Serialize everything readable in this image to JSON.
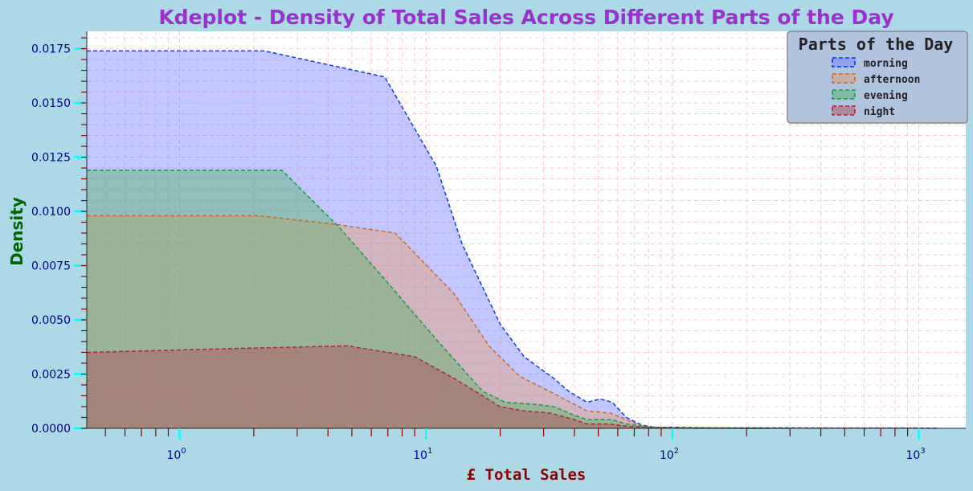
{
  "chart_data": {
    "type": "area",
    "title": "Kdeplot - Density of Total Sales Across Different Parts of the Day",
    "xlabel": "£ Total Sales",
    "ylabel": "Density",
    "x_scale": "log",
    "xlim": [
      0.42,
      1550
    ],
    "ylim": [
      0,
      0.0183
    ],
    "x_ticks": [
      {
        "value": 1,
        "base": "10",
        "exp": "0"
      },
      {
        "value": 10,
        "base": "10",
        "exp": "1"
      },
      {
        "value": 100,
        "base": "10",
        "exp": "2"
      },
      {
        "value": 1000,
        "base": "10",
        "exp": "3"
      }
    ],
    "y_ticks": [
      "0.0000",
      "0.0025",
      "0.0050",
      "0.0075",
      "0.0100",
      "0.0125",
      "0.0150",
      "0.0175"
    ],
    "y_tick_values": [
      0,
      0.0025,
      0.005,
      0.0075,
      0.01,
      0.0125,
      0.015,
      0.0175
    ],
    "grid": true,
    "legend": {
      "title": "Parts of the Day",
      "placement": "top-right"
    },
    "series": [
      {
        "name": "morning",
        "color": "#0033ee",
        "fill": "#6e7dff",
        "x": [
          0.42,
          2.2,
          6.8,
          9,
          11,
          14,
          20,
          25,
          33,
          38,
          45,
          51,
          57,
          65,
          75,
          85,
          100,
          150,
          300,
          600,
          1000,
          1200
        ],
        "y": [
          0.0174,
          0.0174,
          0.0162,
          0.0138,
          0.0121,
          0.0085,
          0.0048,
          0.0033,
          0.0023,
          0.0017,
          0.0012,
          0.00135,
          0.0012,
          0.0005,
          0.00015,
          4e-05,
          5e-05,
          2e-05,
          2e-05,
          1e-05,
          1e-05,
          0.0
        ]
      },
      {
        "name": "afternoon",
        "color": "#cc6622",
        "fill": "#e69a6a",
        "x": [
          0.42,
          2.1,
          4.3,
          7.5,
          9.5,
          13,
          18,
          24,
          33,
          40,
          45,
          56,
          65,
          75,
          90,
          200,
          900,
          1050
        ],
        "y": [
          0.0098,
          0.0098,
          0.0094,
          0.009,
          0.0078,
          0.0062,
          0.0038,
          0.0024,
          0.0016,
          0.0011,
          0.0008,
          0.0007,
          0.0004,
          0.0001,
          3e-05,
          1e-05,
          1e-05,
          0.0
        ]
      },
      {
        "name": "evening",
        "color": "#119944",
        "fill": "#50b060",
        "x": [
          0.42,
          2.6,
          4.5,
          7,
          11,
          17,
          21,
          28,
          33,
          40,
          45,
          50,
          57,
          65,
          80,
          110,
          300
        ],
        "y": [
          0.0119,
          0.0119,
          0.0092,
          0.0067,
          0.0041,
          0.0017,
          0.0012,
          0.0011,
          0.001,
          0.0006,
          0.0004,
          0.0004,
          0.0004,
          0.0002,
          5e-05,
          1e-05,
          0.0
        ]
      },
      {
        "name": "night",
        "color": "#aa2233",
        "fill": "#b04450",
        "x": [
          0.42,
          2,
          4.8,
          9,
          13,
          20,
          25,
          32,
          40,
          45,
          55,
          65,
          80,
          110,
          250
        ],
        "y": [
          0.0035,
          0.0037,
          0.0038,
          0.0033,
          0.0023,
          0.001,
          0.0008,
          0.0007,
          0.0004,
          0.0002,
          0.0002,
          0.0001,
          3e-05,
          1e-05,
          0.0
        ]
      }
    ]
  }
}
